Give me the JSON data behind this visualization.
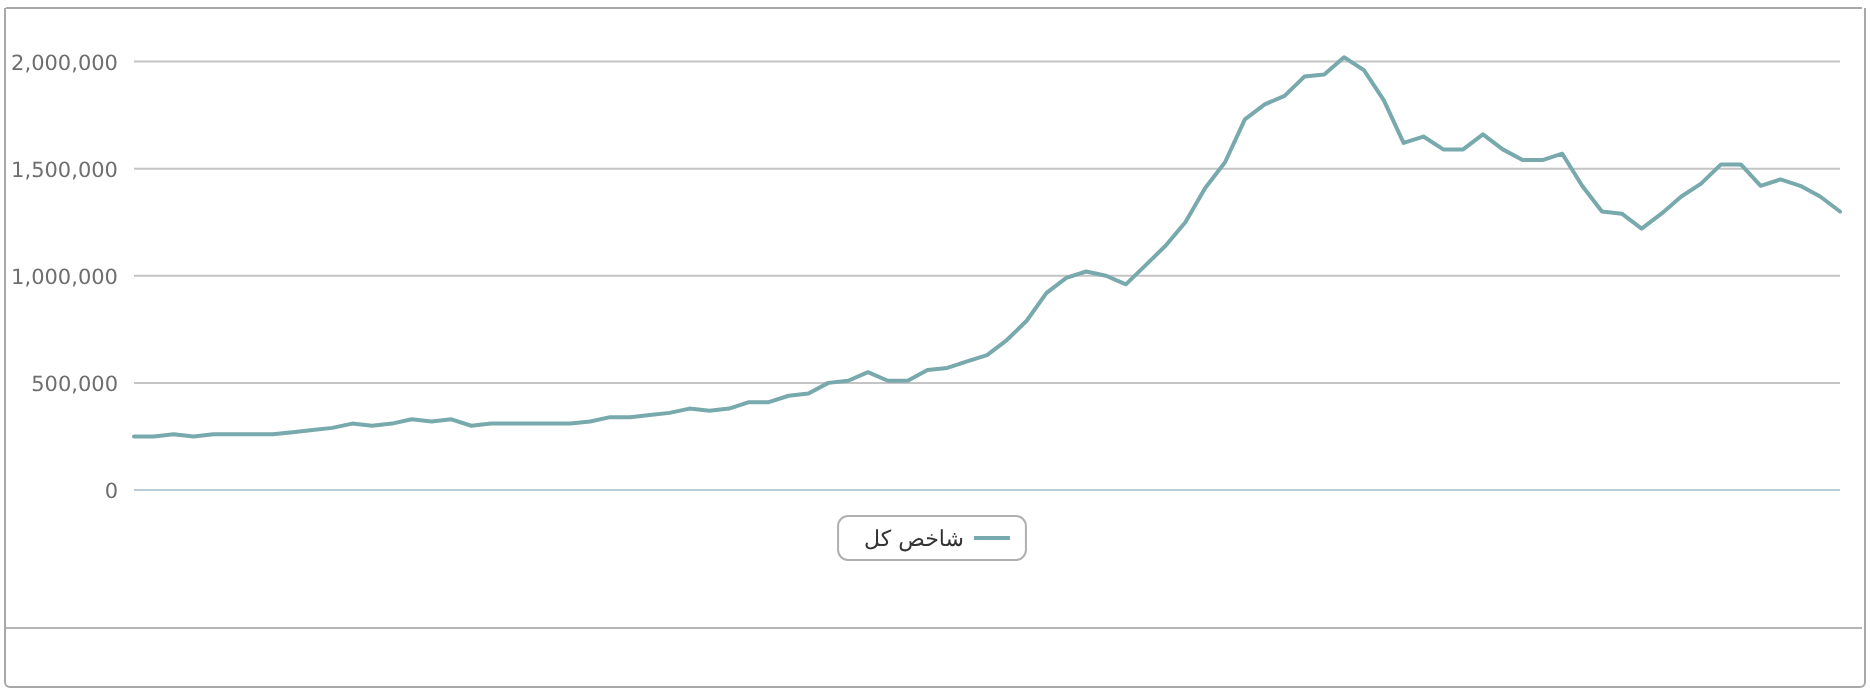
{
  "chart_data": {
    "type": "line",
    "categories": [
      null,
      null,
      null,
      null,
      null,
      null,
      null,
      null,
      null,
      null,
      null,
      null,
      null,
      null,
      null,
      null,
      null,
      null,
      null,
      null,
      null,
      null,
      null,
      null,
      null,
      null,
      null,
      null,
      null,
      null,
      null,
      null,
      null,
      null,
      null,
      null,
      null,
      null,
      null,
      null,
      null,
      null,
      null,
      null,
      null,
      null,
      null,
      null,
      null,
      null,
      null,
      null,
      null,
      null,
      null,
      null,
      null,
      null,
      null,
      null,
      null,
      null,
      null,
      null,
      null,
      null,
      null,
      null,
      null,
      null,
      null,
      null,
      null,
      null,
      null,
      null,
      null,
      null,
      null,
      null,
      null,
      null,
      null,
      null,
      null,
      null,
      null
    ],
    "series": [
      {
        "name": "شاخص کل",
        "color": "#78a9ad",
        "values": [
          250000,
          250000,
          260000,
          250000,
          260000,
          260000,
          260000,
          260000,
          270000,
          280000,
          290000,
          310000,
          300000,
          310000,
          330000,
          320000,
          330000,
          300000,
          310000,
          310000,
          310000,
          310000,
          310000,
          320000,
          340000,
          340000,
          350000,
          360000,
          380000,
          370000,
          380000,
          410000,
          410000,
          440000,
          450000,
          500000,
          510000,
          550000,
          510000,
          510000,
          560000,
          570000,
          600000,
          630000,
          700000,
          790000,
          920000,
          990000,
          1020000,
          1000000,
          960000,
          1050000,
          1140000,
          1250000,
          1410000,
          1530000,
          1730000,
          1800000,
          1840000,
          1930000,
          1940000,
          2020000,
          1960000,
          1820000,
          1620000,
          1650000,
          1590000,
          1590000,
          1660000,
          1590000,
          1540000,
          1540000,
          1570000,
          1420000,
          1300000,
          1290000,
          1220000,
          1290000,
          1370000,
          1430000,
          1520000,
          1520000,
          1420000,
          1450000,
          1420000,
          1370000,
          1300000
        ]
      }
    ],
    "ylim": [
      0,
      2250000
    ],
    "yticks": [
      0,
      {
        "value": 500000,
        "label": "500,000"
      },
      {
        "value": 1000000,
        "label": "1,000,000"
      },
      {
        "value": 1500000,
        "label": "1,500,000"
      },
      {
        "value": 2000000,
        "label": "2,000,000"
      }
    ],
    "grid": "y",
    "legend": "bottom"
  }
}
